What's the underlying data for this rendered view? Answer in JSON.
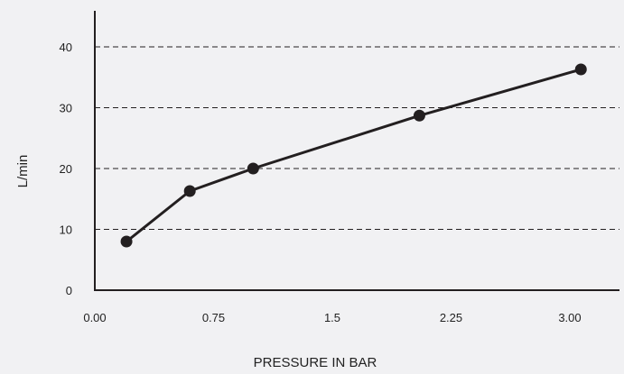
{
  "colors": {
    "background": "#f1f1f3",
    "line": "#231f20",
    "marker": "#231f20",
    "axis": "#231f20",
    "grid": "#231f20",
    "text": "#222222"
  },
  "chart_data": {
    "type": "line",
    "title": "",
    "xlabel": "PRESSURE IN BAR",
    "ylabel": "L/min",
    "xlim": [
      0,
      3.25
    ],
    "ylim": [
      0,
      45
    ],
    "x_ticks": [
      {
        "value": 0,
        "label": "0.00"
      },
      {
        "value": 0.75,
        "label": "0.75"
      },
      {
        "value": 1.5,
        "label": "1.5"
      },
      {
        "value": 2.25,
        "label": "2.25"
      },
      {
        "value": 3.0,
        "label": "3.00"
      }
    ],
    "y_ticks": [
      {
        "value": 0,
        "label": "0"
      },
      {
        "value": 10,
        "label": "10"
      },
      {
        "value": 20,
        "label": "20"
      },
      {
        "value": 30,
        "label": "30"
      },
      {
        "value": 40,
        "label": "40"
      }
    ],
    "grid": {
      "y": true,
      "x": false,
      "style": "dashed"
    },
    "legend": "none",
    "series": [
      {
        "x": [
          0.2,
          0.6,
          1.0,
          2.05,
          3.07
        ],
        "y": [
          8,
          16.3,
          20,
          28.7,
          36.3
        ]
      }
    ]
  }
}
